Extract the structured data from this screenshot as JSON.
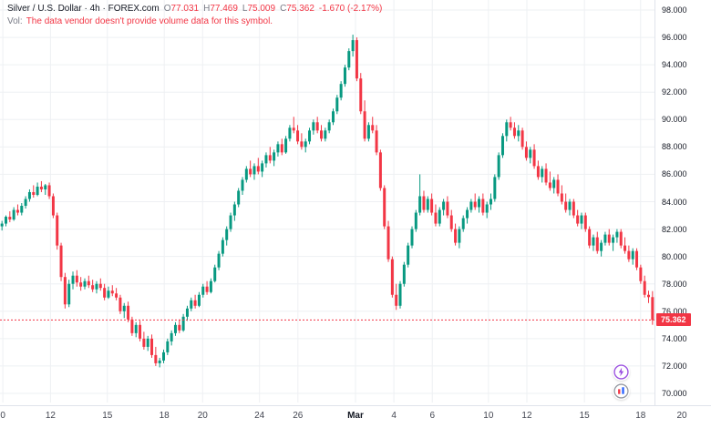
{
  "legend": {
    "title": "Silver / U.S. Dollar · 4h · FOREX.com",
    "ohlc": {
      "o_label": "O",
      "o_value": "77.031",
      "h_label": "H",
      "h_value": "77.469",
      "l_label": "L",
      "l_value": "75.009",
      "c_label": "C",
      "c_value": "75.362",
      "change": "-1.670 (-2.17%)"
    },
    "vol_label": "Vol:",
    "vol_message": "The data vendor doesn't provide volume data for this symbol."
  },
  "buttons": {
    "lightning_color": "#9b51e0",
    "ring_color": "#9598a1",
    "bar_blue_color": "#2962ff",
    "bar_red_color": "#f23645"
  },
  "chart_data": {
    "type": "candlestick",
    "symbol": "Silver / U.S. Dollar",
    "interval": "4h",
    "provider": "FOREX.com",
    "up_color": "#089981",
    "down_color": "#f23645",
    "grid_color": "#eef0f3",
    "price_line": 75.362,
    "last_price_label": "75.362",
    "ylim": [
      70,
      98
    ],
    "y_axis": {
      "min": 70,
      "max": 98,
      "step": 2,
      "decimals": 3
    },
    "x_ticks": [
      {
        "label": "0",
        "pos": 0.004
      },
      {
        "label": "12",
        "pos": 0.071
      },
      {
        "label": "15",
        "pos": 0.151
      },
      {
        "label": "18",
        "pos": 0.231
      },
      {
        "label": "20",
        "pos": 0.285
      },
      {
        "label": "24",
        "pos": 0.365
      },
      {
        "label": "26",
        "pos": 0.419
      },
      {
        "label": "Mar",
        "pos": 0.5,
        "major": true
      },
      {
        "label": "4",
        "pos": 0.554
      },
      {
        "label": "6",
        "pos": 0.608
      },
      {
        "label": "10",
        "pos": 0.687
      },
      {
        "label": "12",
        "pos": 0.741
      },
      {
        "label": "15",
        "pos": 0.822
      },
      {
        "label": "18",
        "pos": 0.901
      },
      {
        "label": "20",
        "pos": 0.959
      }
    ],
    "candles": [
      [
        82.2,
        82.6,
        81.9,
        82.4
      ],
      [
        82.4,
        83.0,
        82.2,
        82.9
      ],
      [
        82.9,
        83.3,
        82.5,
        82.7
      ],
      [
        82.7,
        83.6,
        82.6,
        83.4
      ],
      [
        83.4,
        83.8,
        83.0,
        83.2
      ],
      [
        83.2,
        83.9,
        83.0,
        83.7
      ],
      [
        83.7,
        84.4,
        83.5,
        84.2
      ],
      [
        84.2,
        84.9,
        84.0,
        84.7
      ],
      [
        84.7,
        85.2,
        84.3,
        84.5
      ],
      [
        84.5,
        85.4,
        84.4,
        85.1
      ],
      [
        85.1,
        85.5,
        84.7,
        84.9
      ],
      [
        84.9,
        85.3,
        84.5,
        85.2
      ],
      [
        85.2,
        85.4,
        84.2,
        84.4
      ],
      [
        84.4,
        84.6,
        82.8,
        83.0
      ],
      [
        83.0,
        83.2,
        80.5,
        80.8
      ],
      [
        80.8,
        81.0,
        78.2,
        78.5
      ],
      [
        78.5,
        78.8,
        76.2,
        76.5
      ],
      [
        76.5,
        78.3,
        76.3,
        78.0
      ],
      [
        78.0,
        78.9,
        77.6,
        78.6
      ],
      [
        78.6,
        79.0,
        77.8,
        78.1
      ],
      [
        78.1,
        78.5,
        77.5,
        77.8
      ],
      [
        77.8,
        78.4,
        77.6,
        78.2
      ],
      [
        78.2,
        78.6,
        77.7,
        77.9
      ],
      [
        77.9,
        78.3,
        77.4,
        77.6
      ],
      [
        77.6,
        78.2,
        77.3,
        78.0
      ],
      [
        78.0,
        78.4,
        77.5,
        77.7
      ],
      [
        77.7,
        78.0,
        76.8,
        77.0
      ],
      [
        77.0,
        77.8,
        76.9,
        77.5
      ],
      [
        77.5,
        77.9,
        77.1,
        77.3
      ],
      [
        77.3,
        77.7,
        76.8,
        77.0
      ],
      [
        77.0,
        77.2,
        75.8,
        76.0
      ],
      [
        76.0,
        76.6,
        75.5,
        76.4
      ],
      [
        76.4,
        76.7,
        75.2,
        75.4
      ],
      [
        75.4,
        75.6,
        74.2,
        74.4
      ],
      [
        74.4,
        75.2,
        74.1,
        75.0
      ],
      [
        75.0,
        75.3,
        73.8,
        74.0
      ],
      [
        74.0,
        74.5,
        73.2,
        73.4
      ],
      [
        73.4,
        74.2,
        73.1,
        74.0
      ],
      [
        74.0,
        74.3,
        72.6,
        72.8
      ],
      [
        72.8,
        73.4,
        72.0,
        72.2
      ],
      [
        72.2,
        72.6,
        71.9,
        72.4
      ],
      [
        72.4,
        73.2,
        72.2,
        73.0
      ],
      [
        73.0,
        74.0,
        72.8,
        73.8
      ],
      [
        73.8,
        74.6,
        73.5,
        74.4
      ],
      [
        74.4,
        75.2,
        74.2,
        75.0
      ],
      [
        75.0,
        75.4,
        74.4,
        74.6
      ],
      [
        74.6,
        75.8,
        74.5,
        75.6
      ],
      [
        75.6,
        76.4,
        75.3,
        76.2
      ],
      [
        76.2,
        77.0,
        76.0,
        76.8
      ],
      [
        76.8,
        77.2,
        76.2,
        76.4
      ],
      [
        76.4,
        77.4,
        76.3,
        77.2
      ],
      [
        77.2,
        78.0,
        77.0,
        77.8
      ],
      [
        77.8,
        78.2,
        77.2,
        77.4
      ],
      [
        77.4,
        78.4,
        77.3,
        78.2
      ],
      [
        78.2,
        79.4,
        78.1,
        79.2
      ],
      [
        79.2,
        80.4,
        79.0,
        80.2
      ],
      [
        80.2,
        81.4,
        80.0,
        81.2
      ],
      [
        81.2,
        82.2,
        80.8,
        82.0
      ],
      [
        82.0,
        83.2,
        81.8,
        83.0
      ],
      [
        83.0,
        84.0,
        82.6,
        83.8
      ],
      [
        83.8,
        85.0,
        83.6,
        84.8
      ],
      [
        84.8,
        85.8,
        84.5,
        85.6
      ],
      [
        85.6,
        86.6,
        85.4,
        86.4
      ],
      [
        86.4,
        87.0,
        85.8,
        86.0
      ],
      [
        86.0,
        86.8,
        85.6,
        86.6
      ],
      [
        86.6,
        87.2,
        86.0,
        86.2
      ],
      [
        86.2,
        87.0,
        85.8,
        86.8
      ],
      [
        86.8,
        87.6,
        86.5,
        87.4
      ],
      [
        87.4,
        88.0,
        86.8,
        87.0
      ],
      [
        87.0,
        87.8,
        86.6,
        87.6
      ],
      [
        87.6,
        88.4,
        87.3,
        88.2
      ],
      [
        88.2,
        88.6,
        87.4,
        87.6
      ],
      [
        87.6,
        88.8,
        87.5,
        88.6
      ],
      [
        88.6,
        89.6,
        88.4,
        89.4
      ],
      [
        89.4,
        90.2,
        89.0,
        89.2
      ],
      [
        89.2,
        89.6,
        88.2,
        88.4
      ],
      [
        88.4,
        89.0,
        87.8,
        88.0
      ],
      [
        88.0,
        88.6,
        87.6,
        88.4
      ],
      [
        88.4,
        89.4,
        88.2,
        89.2
      ],
      [
        89.2,
        90.0,
        88.9,
        89.8
      ],
      [
        89.8,
        90.2,
        89.0,
        89.2
      ],
      [
        89.2,
        89.6,
        88.4,
        88.6
      ],
      [
        88.6,
        89.4,
        88.4,
        89.2
      ],
      [
        89.2,
        90.0,
        89.0,
        89.8
      ],
      [
        89.8,
        90.8,
        89.6,
        90.6
      ],
      [
        90.6,
        91.8,
        90.4,
        91.6
      ],
      [
        91.6,
        92.8,
        91.4,
        92.6
      ],
      [
        92.6,
        94.0,
        92.4,
        93.8
      ],
      [
        93.8,
        95.2,
        93.6,
        95.0
      ],
      [
        95.0,
        96.2,
        94.6,
        95.8
      ],
      [
        95.8,
        96.0,
        92.8,
        93.0
      ],
      [
        93.0,
        93.4,
        90.4,
        90.6
      ],
      [
        90.6,
        91.4,
        88.4,
        88.6
      ],
      [
        88.6,
        89.8,
        88.4,
        89.6
      ],
      [
        89.6,
        90.2,
        89.0,
        89.2
      ],
      [
        89.2,
        89.6,
        87.4,
        87.6
      ],
      [
        87.6,
        87.8,
        84.8,
        85.0
      ],
      [
        85.0,
        85.2,
        82.0,
        82.2
      ],
      [
        82.2,
        82.6,
        79.6,
        79.8
      ],
      [
        79.8,
        80.0,
        77.0,
        77.2
      ],
      [
        77.2,
        78.0,
        76.1,
        76.4
      ],
      [
        76.4,
        78.2,
        76.2,
        78.0
      ],
      [
        78.0,
        79.6,
        77.8,
        79.4
      ],
      [
        79.4,
        81.0,
        79.2,
        80.8
      ],
      [
        80.8,
        82.2,
        80.6,
        82.0
      ],
      [
        82.0,
        83.4,
        81.8,
        83.2
      ],
      [
        83.2,
        86.0,
        83.0,
        84.4
      ],
      [
        84.4,
        84.8,
        83.2,
        83.4
      ],
      [
        83.4,
        84.4,
        83.2,
        84.2
      ],
      [
        84.2,
        84.6,
        83.0,
        83.2
      ],
      [
        83.2,
        83.8,
        82.2,
        82.4
      ],
      [
        82.4,
        83.6,
        82.2,
        83.4
      ],
      [
        83.4,
        84.2,
        83.0,
        84.0
      ],
      [
        84.0,
        84.4,
        82.8,
        83.0
      ],
      [
        83.0,
        83.4,
        81.8,
        82.0
      ],
      [
        82.0,
        82.4,
        80.8,
        81.0
      ],
      [
        81.0,
        82.2,
        80.6,
        82.0
      ],
      [
        82.0,
        83.0,
        81.8,
        82.8
      ],
      [
        82.8,
        83.6,
        82.4,
        83.4
      ],
      [
        83.4,
        84.2,
        83.2,
        84.0
      ],
      [
        84.0,
        84.6,
        83.4,
        83.6
      ],
      [
        83.6,
        84.4,
        83.2,
        84.2
      ],
      [
        84.2,
        84.6,
        83.0,
        83.2
      ],
      [
        83.2,
        84.0,
        82.8,
        83.8
      ],
      [
        83.8,
        84.6,
        83.4,
        84.2
      ],
      [
        84.2,
        86.0,
        84.0,
        85.8
      ],
      [
        85.8,
        87.6,
        85.6,
        87.4
      ],
      [
        87.4,
        89.0,
        87.2,
        88.8
      ],
      [
        88.8,
        90.0,
        88.4,
        89.8
      ],
      [
        89.8,
        90.2,
        89.2,
        89.4
      ],
      [
        89.4,
        89.8,
        88.6,
        88.8
      ],
      [
        88.8,
        89.6,
        88.4,
        89.2
      ],
      [
        89.2,
        89.4,
        87.8,
        88.0
      ],
      [
        88.0,
        88.4,
        87.0,
        87.2
      ],
      [
        87.2,
        88.0,
        86.8,
        87.8
      ],
      [
        87.8,
        88.2,
        86.4,
        86.6
      ],
      [
        86.6,
        87.0,
        85.6,
        85.8
      ],
      [
        85.8,
        86.6,
        85.4,
        86.4
      ],
      [
        86.4,
        86.8,
        85.2,
        85.4
      ],
      [
        85.4,
        86.2,
        84.8,
        85.0
      ],
      [
        85.0,
        85.8,
        84.6,
        85.6
      ],
      [
        85.6,
        86.0,
        84.4,
        84.6
      ],
      [
        84.6,
        85.2,
        83.8,
        84.0
      ],
      [
        84.0,
        84.6,
        83.2,
        83.4
      ],
      [
        83.4,
        84.2,
        83.0,
        84.0
      ],
      [
        84.0,
        84.2,
        82.8,
        83.0
      ],
      [
        83.0,
        83.4,
        82.2,
        82.4
      ],
      [
        82.4,
        83.2,
        82.0,
        83.0
      ],
      [
        83.0,
        83.2,
        81.8,
        82.0
      ],
      [
        82.0,
        82.2,
        80.6,
        80.8
      ],
      [
        80.8,
        81.6,
        80.4,
        81.4
      ],
      [
        81.4,
        81.8,
        80.2,
        80.4
      ],
      [
        80.4,
        81.2,
        80.0,
        81.0
      ],
      [
        81.0,
        81.8,
        80.8,
        81.6
      ],
      [
        81.6,
        82.0,
        80.8,
        81.0
      ],
      [
        81.0,
        81.6,
        80.4,
        81.4
      ],
      [
        81.4,
        82.0,
        81.0,
        81.8
      ],
      [
        81.8,
        82.0,
        80.6,
        80.8
      ],
      [
        80.8,
        81.4,
        80.2,
        80.4
      ],
      [
        80.4,
        80.8,
        79.6,
        79.8
      ],
      [
        79.8,
        80.6,
        79.4,
        80.4
      ],
      [
        80.4,
        80.6,
        79.0,
        79.2
      ],
      [
        79.2,
        79.4,
        78.0,
        78.2
      ],
      [
        78.2,
        78.6,
        77.0,
        77.2
      ],
      [
        77.2,
        77.5,
        76.6,
        77.031
      ],
      [
        77.031,
        77.469,
        75.009,
        75.362
      ]
    ]
  }
}
